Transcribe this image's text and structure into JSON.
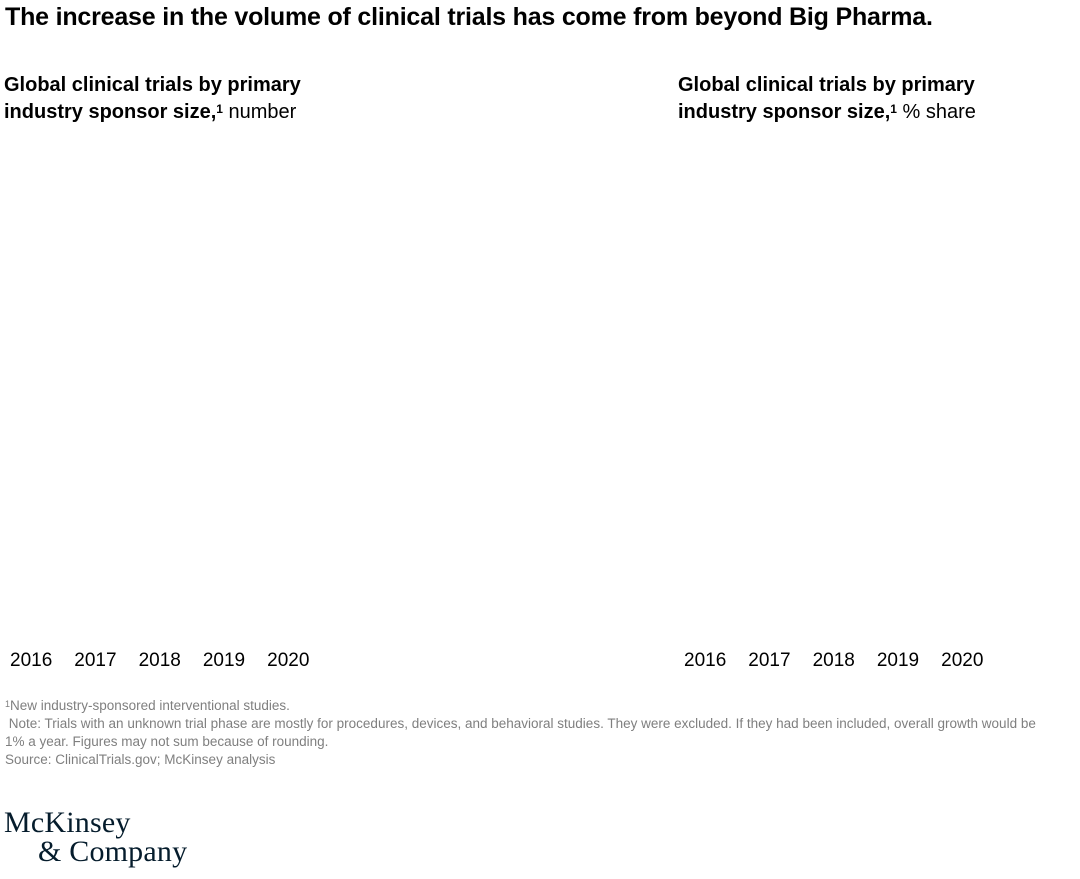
{
  "page": {
    "title": "The increase in the volume of clinical trials has come from beyond Big Pharma."
  },
  "charts": [
    {
      "heading_bold": "Global clinical trials by primary industry sponsor size,",
      "footnote_marker": "1",
      "unit_label": " number",
      "x_tick_labels": [
        "2016",
        "2017",
        "2018",
        "2019",
        "2020"
      ]
    },
    {
      "heading_bold": "Global clinical trials by primary industry sponsor size,",
      "footnote_marker": "1",
      "unit_label": " % share",
      "x_tick_labels": [
        "2016",
        "2017",
        "2018",
        "2019",
        "2020"
      ]
    }
  ],
  "chart_data": [
    {
      "type": "bar",
      "title": "Global clinical trials by primary industry sponsor size, number",
      "categories": [
        "2016",
        "2017",
        "2018",
        "2019",
        "2020"
      ],
      "series": [],
      "xlabel": "",
      "ylabel": "",
      "legend": "none",
      "grid": false
    },
    {
      "type": "bar",
      "title": "Global clinical trials by primary industry sponsor size, % share",
      "categories": [
        "2016",
        "2017",
        "2018",
        "2019",
        "2020"
      ],
      "series": [],
      "xlabel": "",
      "ylabel": "",
      "legend": "none",
      "grid": false
    }
  ],
  "footnotes": {
    "footnote1_marker": "1",
    "footnote1_text": "New industry-sponsored interventional studies.",
    "note_text": " Note: Trials with an unknown trial phase are mostly for procedures, devices, and behavioral studies. They were excluded. If they had been included, overall growth would be 1% a year. Figures may not sum because of rounding.",
    "source_text": "Source: ClinicalTrials.gov; McKinsey analysis"
  },
  "logo": {
    "line1": "McKinsey",
    "line2": "& Company"
  },
  "colors": {
    "title_text": "#000000",
    "footnote_text": "#7f7f7f",
    "logo_navy": "#051c2c",
    "background": "#ffffff"
  }
}
